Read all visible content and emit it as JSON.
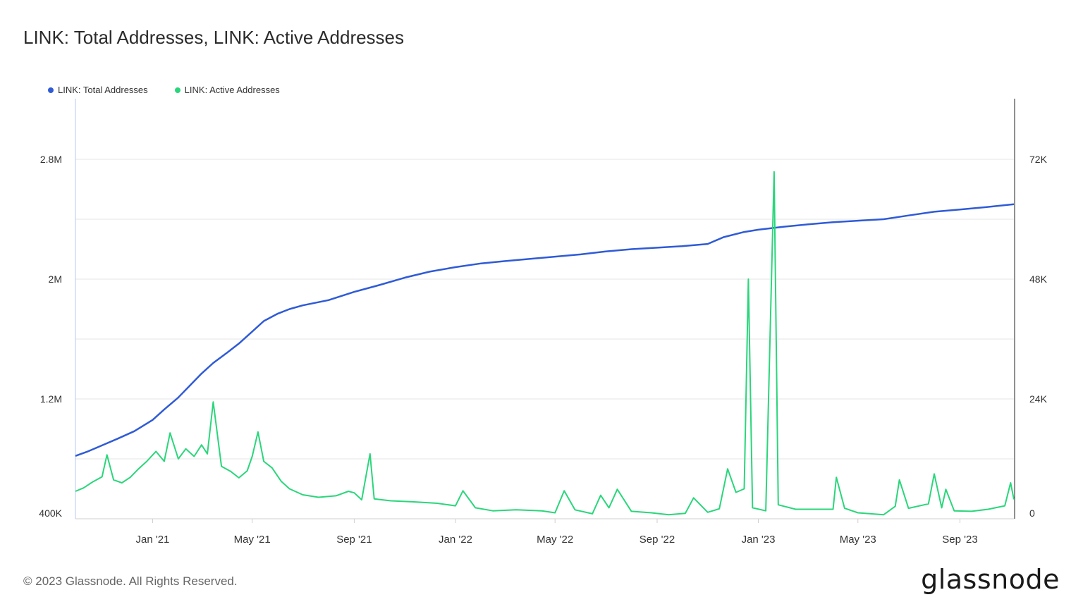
{
  "header": {
    "title": "LINK: Total Addresses, LINK: Active Addresses"
  },
  "footer": {
    "copyright": "© 2023 Glassnode. All Rights Reserved.",
    "logo_text": "glassnode"
  },
  "colors": {
    "total": "#2f5bd6",
    "active": "#2ad67b",
    "grid": "#e6e6e6",
    "axis_text": "#333333"
  },
  "chart_data": {
    "type": "line",
    "title": "LINK: Total Addresses, LINK: Active Addresses",
    "x_range": [
      "2020-09-30",
      "2023-11-05"
    ],
    "x_ticks": [
      {
        "label": "Jan '21",
        "date": "2021-01-01"
      },
      {
        "label": "May '21",
        "date": "2021-05-01"
      },
      {
        "label": "Sep '21",
        "date": "2021-09-01"
      },
      {
        "label": "Jan '22",
        "date": "2022-01-01"
      },
      {
        "label": "May '22",
        "date": "2022-05-01"
      },
      {
        "label": "Sep '22",
        "date": "2022-09-01"
      },
      {
        "label": "Jan '23",
        "date": "2023-01-01"
      },
      {
        "label": "May '23",
        "date": "2023-05-01"
      },
      {
        "label": "Sep '23",
        "date": "2023-09-01"
      }
    ],
    "y_left": {
      "min": 400000,
      "max": 2800000,
      "ticks": [
        "400K",
        "1.2M",
        "2M",
        "2.8M"
      ],
      "tick_values": [
        400000,
        1200000,
        2000000,
        2800000
      ]
    },
    "y_right": {
      "min": 0,
      "max": 72000,
      "ticks": [
        "0",
        "24K",
        "48K",
        "72K"
      ],
      "tick_values": [
        0,
        24000,
        48000,
        72000
      ]
    },
    "legend_placement": "top-left",
    "series": [
      {
        "name": "LINK: Total Addresses",
        "axis": "left",
        "points": [
          [
            "2020-09-30",
            820000
          ],
          [
            "2020-10-15",
            850000
          ],
          [
            "2020-11-01",
            890000
          ],
          [
            "2020-11-20",
            935000
          ],
          [
            "2020-12-10",
            985000
          ],
          [
            "2021-01-01",
            1060000
          ],
          [
            "2021-01-15",
            1130000
          ],
          [
            "2021-02-01",
            1210000
          ],
          [
            "2021-02-15",
            1290000
          ],
          [
            "2021-03-01",
            1370000
          ],
          [
            "2021-03-15",
            1440000
          ],
          [
            "2021-04-01",
            1510000
          ],
          [
            "2021-04-15",
            1570000
          ],
          [
            "2021-05-01",
            1650000
          ],
          [
            "2021-05-15",
            1720000
          ],
          [
            "2021-06-01",
            1770000
          ],
          [
            "2021-06-15",
            1800000
          ],
          [
            "2021-07-01",
            1825000
          ],
          [
            "2021-08-01",
            1860000
          ],
          [
            "2021-09-01",
            1915000
          ],
          [
            "2021-10-01",
            1960000
          ],
          [
            "2021-11-01",
            2010000
          ],
          [
            "2021-12-01",
            2050000
          ],
          [
            "2022-01-01",
            2080000
          ],
          [
            "2022-02-01",
            2105000
          ],
          [
            "2022-03-01",
            2120000
          ],
          [
            "2022-04-01",
            2135000
          ],
          [
            "2022-05-01",
            2150000
          ],
          [
            "2022-06-01",
            2165000
          ],
          [
            "2022-07-01",
            2185000
          ],
          [
            "2022-08-01",
            2200000
          ],
          [
            "2022-09-01",
            2210000
          ],
          [
            "2022-10-01",
            2220000
          ],
          [
            "2022-11-01",
            2235000
          ],
          [
            "2022-11-20",
            2280000
          ],
          [
            "2022-12-15",
            2315000
          ],
          [
            "2023-01-01",
            2330000
          ],
          [
            "2023-02-01",
            2350000
          ],
          [
            "2023-03-01",
            2365000
          ],
          [
            "2023-04-01",
            2380000
          ],
          [
            "2023-05-01",
            2390000
          ],
          [
            "2023-06-01",
            2400000
          ],
          [
            "2023-07-01",
            2425000
          ],
          [
            "2023-08-01",
            2450000
          ],
          [
            "2023-09-01",
            2465000
          ],
          [
            "2023-10-01",
            2480000
          ],
          [
            "2023-11-05",
            2500000
          ]
        ]
      },
      {
        "name": "LINK: Active Addresses",
        "axis": "right",
        "points": [
          [
            "2020-09-30",
            5500
          ],
          [
            "2020-10-10",
            6200
          ],
          [
            "2020-10-20",
            7300
          ],
          [
            "2020-11-01",
            8400
          ],
          [
            "2020-11-07",
            12800
          ],
          [
            "2020-11-15",
            7800
          ],
          [
            "2020-11-25",
            7200
          ],
          [
            "2020-12-05",
            8300
          ],
          [
            "2020-12-15",
            10000
          ],
          [
            "2020-12-25",
            11500
          ],
          [
            "2021-01-05",
            13500
          ],
          [
            "2021-01-15",
            11500
          ],
          [
            "2021-01-22",
            17200
          ],
          [
            "2021-02-01",
            12000
          ],
          [
            "2021-02-10",
            14000
          ],
          [
            "2021-02-20",
            12500
          ],
          [
            "2021-03-01",
            14800
          ],
          [
            "2021-03-08",
            13000
          ],
          [
            "2021-03-15",
            23400
          ],
          [
            "2021-03-25",
            10500
          ],
          [
            "2021-04-05",
            9500
          ],
          [
            "2021-04-15",
            8200
          ],
          [
            "2021-04-25",
            9600
          ],
          [
            "2021-05-01",
            12500
          ],
          [
            "2021-05-08",
            17400
          ],
          [
            "2021-05-15",
            11500
          ],
          [
            "2021-05-25",
            10200
          ],
          [
            "2021-06-05",
            7500
          ],
          [
            "2021-06-15",
            6000
          ],
          [
            "2021-07-01",
            4800
          ],
          [
            "2021-07-20",
            4300
          ],
          [
            "2021-08-10",
            4600
          ],
          [
            "2021-08-25",
            5500
          ],
          [
            "2021-09-01",
            5200
          ],
          [
            "2021-09-10",
            3800
          ],
          [
            "2021-09-20",
            13000
          ],
          [
            "2021-09-25",
            4000
          ],
          [
            "2021-10-15",
            3600
          ],
          [
            "2021-11-10",
            3400
          ],
          [
            "2021-12-10",
            3100
          ],
          [
            "2022-01-01",
            2600
          ],
          [
            "2022-01-10",
            5600
          ],
          [
            "2022-01-25",
            2200
          ],
          [
            "2022-02-15",
            1600
          ],
          [
            "2022-03-15",
            1800
          ],
          [
            "2022-04-15",
            1600
          ],
          [
            "2022-05-01",
            1200
          ],
          [
            "2022-05-12",
            5600
          ],
          [
            "2022-05-25",
            1800
          ],
          [
            "2022-06-15",
            1000
          ],
          [
            "2022-06-25",
            4700
          ],
          [
            "2022-07-05",
            2200
          ],
          [
            "2022-07-15",
            5900
          ],
          [
            "2022-08-01",
            1500
          ],
          [
            "2022-08-25",
            1200
          ],
          [
            "2022-09-15",
            800
          ],
          [
            "2022-10-05",
            1100
          ],
          [
            "2022-10-15",
            4200
          ],
          [
            "2022-11-01",
            1300
          ],
          [
            "2022-11-15",
            2000
          ],
          [
            "2022-11-25",
            10000
          ],
          [
            "2022-12-05",
            5300
          ],
          [
            "2022-12-15",
            6000
          ],
          [
            "2022-12-20",
            48000
          ],
          [
            "2022-12-25",
            2200
          ],
          [
            "2023-01-10",
            1600
          ],
          [
            "2023-01-20",
            69500
          ],
          [
            "2023-01-25",
            2800
          ],
          [
            "2023-02-15",
            1900
          ],
          [
            "2023-03-15",
            1900
          ],
          [
            "2023-04-01",
            1900
          ],
          [
            "2023-04-05",
            8300
          ],
          [
            "2023-04-15",
            2100
          ],
          [
            "2023-05-01",
            1200
          ],
          [
            "2023-06-01",
            800
          ],
          [
            "2023-06-15",
            2500
          ],
          [
            "2023-06-20",
            7800
          ],
          [
            "2023-07-01",
            2100
          ],
          [
            "2023-07-25",
            3000
          ],
          [
            "2023-08-01",
            9000
          ],
          [
            "2023-08-10",
            2200
          ],
          [
            "2023-08-15",
            5900
          ],
          [
            "2023-08-25",
            1600
          ],
          [
            "2023-09-15",
            1500
          ],
          [
            "2023-10-05",
            1900
          ],
          [
            "2023-10-25",
            2600
          ],
          [
            "2023-11-01",
            7200
          ],
          [
            "2023-11-05",
            3900
          ]
        ]
      }
    ]
  }
}
